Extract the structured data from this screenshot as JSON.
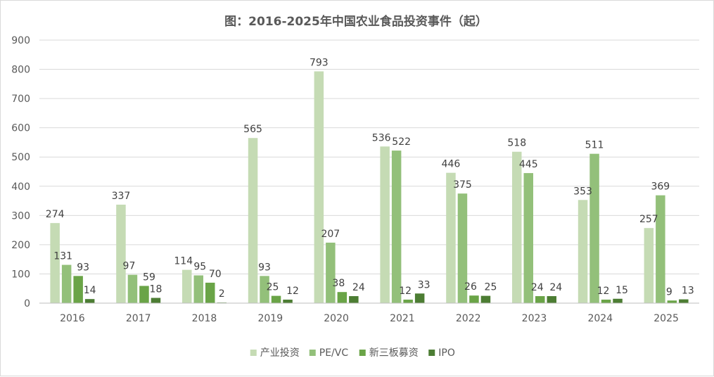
{
  "chart_data": {
    "type": "bar",
    "title": "图：2016-2025年中国农业食品投资事件（起）",
    "categories": [
      "2016",
      "2017",
      "2018",
      "2019",
      "2020",
      "2021",
      "2022",
      "2023",
      "2024",
      "2025"
    ],
    "series": [
      {
        "name": "产业投资",
        "color": "#c5dbb4",
        "values": [
          274,
          337,
          114,
          565,
          793,
          536,
          446,
          518,
          353,
          257
        ]
      },
      {
        "name": "PE/VC",
        "color": "#93c07a",
        "values": [
          131,
          97,
          95,
          93,
          207,
          522,
          375,
          445,
          511,
          369
        ]
      },
      {
        "name": "新三板募资",
        "color": "#6aa447",
        "values": [
          93,
          59,
          70,
          25,
          38,
          12,
          26,
          24,
          12,
          9
        ]
      },
      {
        "name": "IPO",
        "color": "#4c7d33",
        "values": [
          14,
          18,
          2,
          12,
          24,
          33,
          25,
          24,
          15,
          13
        ]
      }
    ],
    "ylim": [
      0,
      900
    ],
    "yticks": [
      0,
      100,
      200,
      300,
      400,
      500,
      600,
      700,
      800,
      900
    ],
    "ytick_labels": [
      "0",
      "100",
      "200",
      "300",
      "400",
      "500",
      "600",
      "700",
      "800",
      "900"
    ],
    "grid": true,
    "legend": "bottom",
    "xlabel": "",
    "ylabel": ""
  }
}
